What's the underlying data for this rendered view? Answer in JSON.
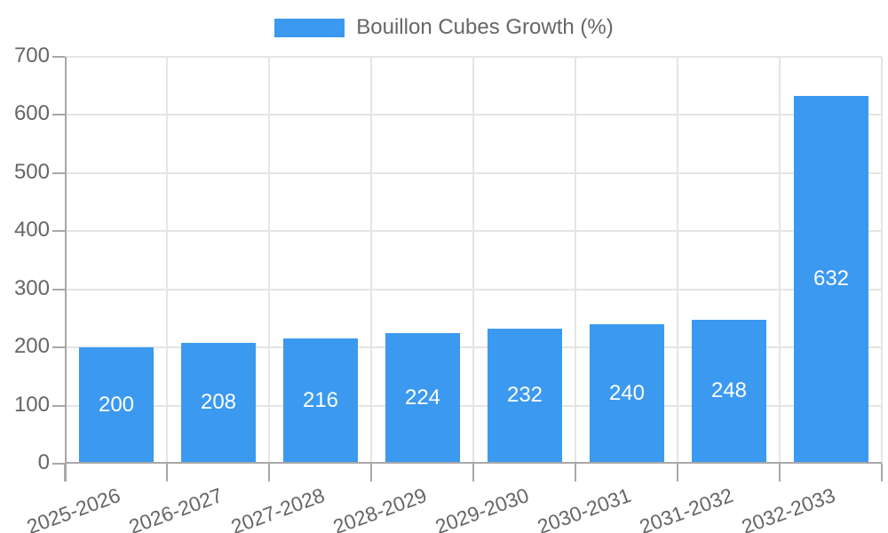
{
  "legend": {
    "label": "Bouillon Cubes Growth (%)"
  },
  "chart_data": {
    "type": "bar",
    "title": "Bouillon Cubes Growth (%)",
    "categories": [
      "2025-2026",
      "2026-2027",
      "2027-2028",
      "2028-2029",
      "2029-2030",
      "2030-2031",
      "2031-2032",
      "2032-2033"
    ],
    "values": [
      200,
      208,
      216,
      224,
      232,
      240,
      248,
      632
    ],
    "value_labels": [
      "200",
      "208",
      "216",
      "224",
      "232",
      "240",
      "248",
      "632"
    ],
    "xlabel": "",
    "ylabel": "",
    "ylim": [
      0,
      700
    ],
    "yticks": [
      0,
      100,
      200,
      300,
      400,
      500,
      600,
      700
    ],
    "grid": true,
    "legend_position": "top-center",
    "colors": {
      "bar": "#3B99F0",
      "grid": "#E5E5E5",
      "axis": "#A8A8A8",
      "tick_text": "#666666",
      "value_text": "#FFFFFF"
    }
  }
}
